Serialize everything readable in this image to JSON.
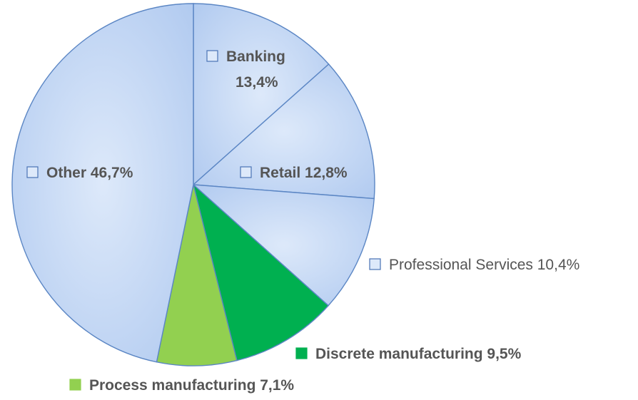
{
  "chart_data": {
    "type": "pie",
    "start_angle_deg": 0,
    "direction": "clockwise",
    "slices": [
      {
        "label": "Banking",
        "value": 13.4,
        "display": "13,4%",
        "color": "#c8dbf6",
        "swatch": "#c8dbf6",
        "bold": true
      },
      {
        "label": "Retail",
        "value": 12.8,
        "display": "12,8%",
        "color": "#c8dbf6",
        "swatch": "#c8dbf6",
        "bold": true
      },
      {
        "label": "Professional Services",
        "value": 10.4,
        "display": "10,4%",
        "color": "#c8dbf6",
        "swatch": "#c8dbf6",
        "bold": false
      },
      {
        "label": "Discrete manufacturing",
        "value": 9.5,
        "display": "9,5%",
        "color": "#00b050",
        "swatch": "#00b050",
        "bold": true
      },
      {
        "label": "Process manufacturing",
        "value": 7.1,
        "display": "7,1%",
        "color": "#92d050",
        "swatch": "#92d050",
        "bold": true
      },
      {
        "label": "Other",
        "value": 46.7,
        "display": "46,7%",
        "color": "#c8dbf6",
        "swatch": "#c8dbf6",
        "bold": true
      }
    ],
    "colors": {
      "outline": "#5b86c4",
      "label_text": "#555555"
    }
  }
}
